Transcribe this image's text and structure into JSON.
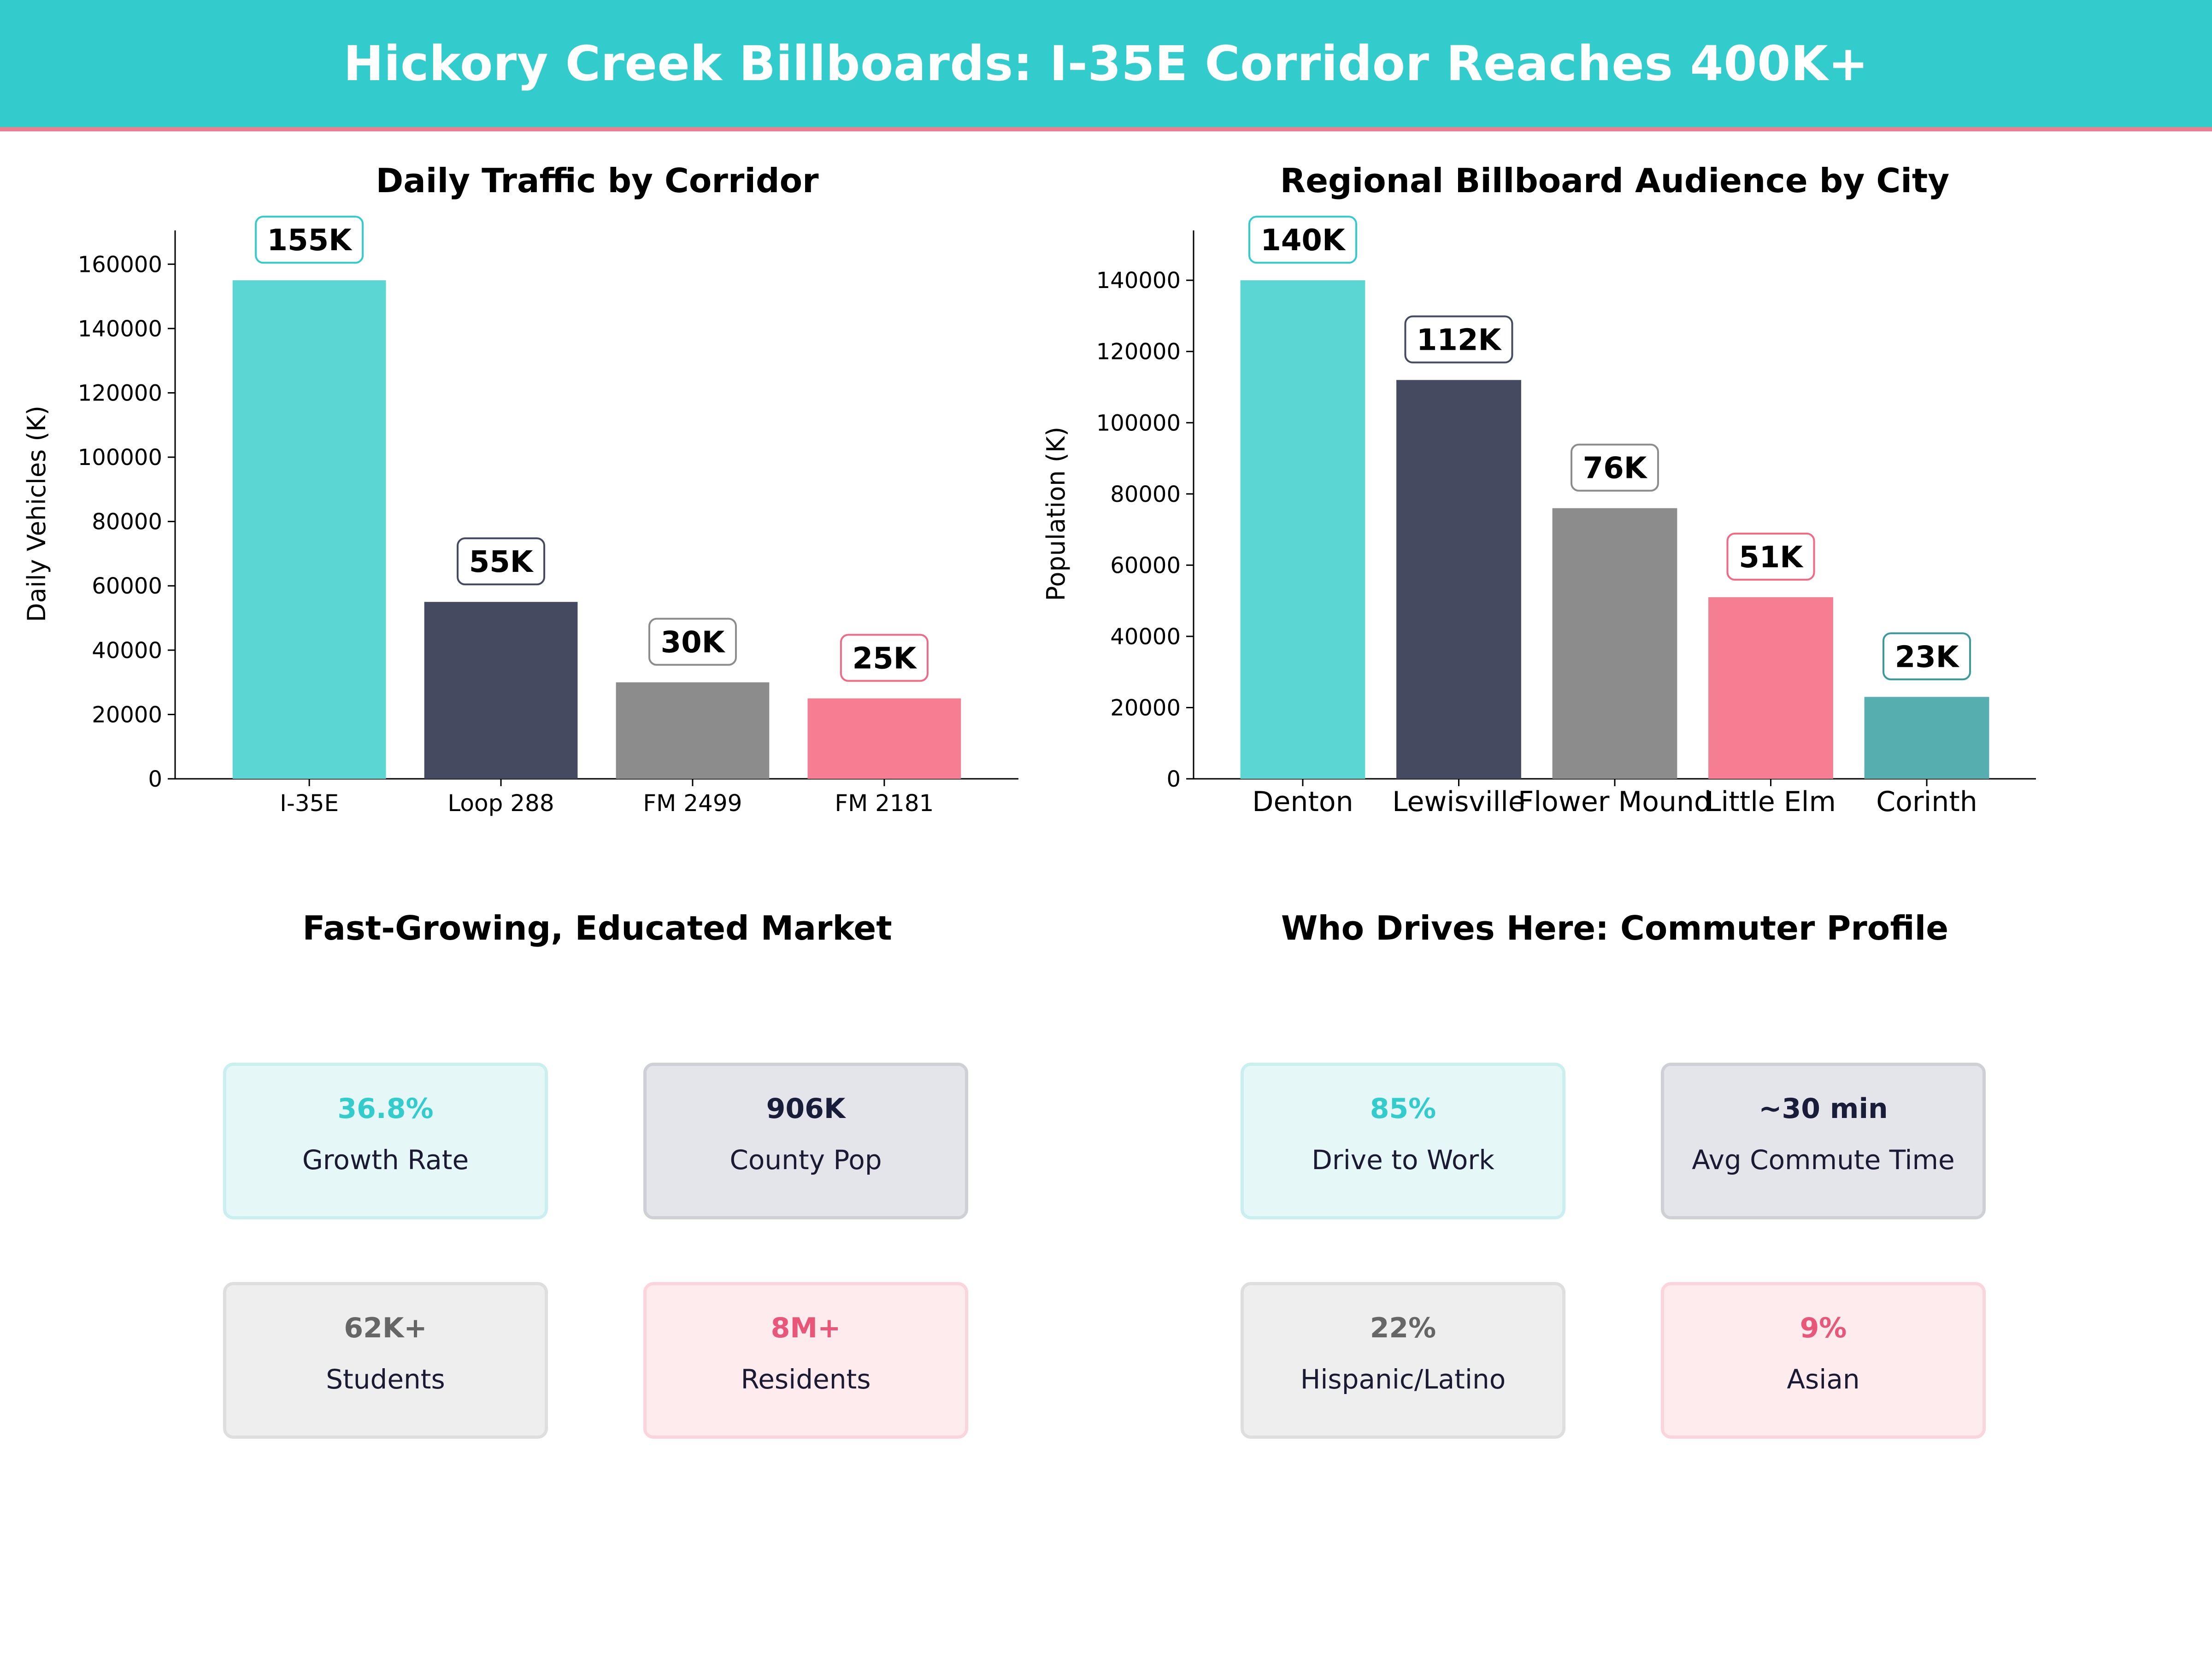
{
  "header": {
    "title": "Hickory Creek Billboards: I-35E Corridor Reaches 400K+"
  },
  "chart_data": [
    {
      "type": "bar",
      "title": "Daily Traffic by Corridor",
      "xlabel": "",
      "ylabel": "Daily Vehicles (K)",
      "categories": [
        "I-35E",
        "Loop 288",
        "FM 2499",
        "FM 2181"
      ],
      "values": [
        155000,
        55000,
        30000,
        25000
      ],
      "data_labels": [
        "155K",
        "55K",
        "30K",
        "25K"
      ],
      "colors": [
        "#5cd6d3",
        "#454a60",
        "#8c8c8c",
        "#f57e93"
      ],
      "label_border_colors": [
        "#33cccc",
        "#454a60",
        "#8c8c8c",
        "#f06a85"
      ],
      "ylim": [
        0,
        170500
      ],
      "yticks": [
        0,
        20000,
        40000,
        60000,
        80000,
        100000,
        120000,
        140000,
        160000
      ],
      "grid": false
    },
    {
      "type": "bar",
      "title": "Regional Billboard Audience by City",
      "xlabel": "",
      "ylabel": "Population (K)",
      "categories": [
        "Denton",
        "Lewisville",
        "Flower Mound",
        "Little Elm",
        "Corinth"
      ],
      "values": [
        140000,
        112000,
        76000,
        51000,
        23000
      ],
      "data_labels": [
        "140K",
        "112K",
        "76K",
        "51K",
        "23K"
      ],
      "colors": [
        "#5cd6d3",
        "#454a60",
        "#8c8c8c",
        "#f57e93",
        "#57aeae"
      ],
      "label_border_colors": [
        "#33cccc",
        "#454a60",
        "#8c8c8c",
        "#f06a85",
        "#3a9a9a"
      ],
      "ylim": [
        0,
        154000
      ],
      "yticks": [
        0,
        20000,
        40000,
        60000,
        80000,
        100000,
        120000,
        140000
      ],
      "grid": false
    }
  ],
  "market": {
    "title": "Fast-Growing, Educated Market",
    "cards": [
      {
        "value": "36.8%",
        "label": "Growth Rate",
        "color": "#33cccc"
      },
      {
        "value": "906K",
        "label": "County Pop",
        "color": "#1a1d3a"
      },
      {
        "value": "62K+",
        "label": "Students",
        "color": "#666666"
      },
      {
        "value": "8M+",
        "label": "Residents",
        "color": "#e8577a"
      }
    ]
  },
  "commuter": {
    "title": "Who Drives Here: Commuter Profile",
    "cards": [
      {
        "value": "85%",
        "label": "Drive to Work",
        "color": "#33cccc"
      },
      {
        "value": "~30 min",
        "label": "Avg Commute Time",
        "color": "#1a1d3a"
      },
      {
        "value": "22%",
        "label": "Hispanic/Latino",
        "color": "#666666"
      },
      {
        "value": "9%",
        "label": "Asian",
        "color": "#e8577a"
      }
    ]
  }
}
